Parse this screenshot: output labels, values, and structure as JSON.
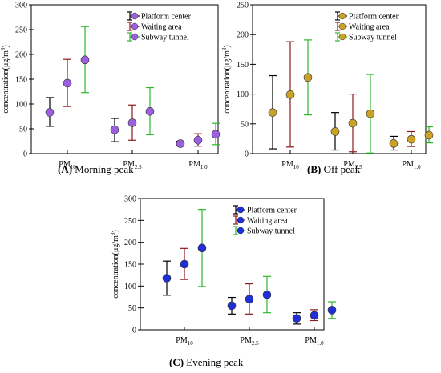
{
  "chart_data": [
    {
      "type": "scatter",
      "panel_letter": "(A)",
      "caption": "Morning peak",
      "ylabel": "concentration(μg/m³)",
      "ylim": [
        0,
        300
      ],
      "yticks": [
        0,
        50,
        100,
        150,
        200,
        250,
        300
      ],
      "categories": [
        "PM10",
        "PM2.5",
        "PM1.0"
      ],
      "marker_color": "#9b5fe0",
      "series": [
        {
          "name": "Platform center",
          "bar_color": "#000000",
          "mean": [
            83,
            48,
            20
          ],
          "low": [
            55,
            24,
            16
          ],
          "high": [
            113,
            71,
            25
          ]
        },
        {
          "name": "Waiting area",
          "bar_color": "#8b1a1a",
          "mean": [
            142,
            62,
            27
          ],
          "low": [
            95,
            27,
            15
          ],
          "high": [
            190,
            98,
            40
          ]
        },
        {
          "name": "Subway tunnel",
          "bar_color": "#2db82d",
          "mean": [
            189,
            85,
            39
          ],
          "low": [
            123,
            38,
            18
          ],
          "high": [
            256,
            133,
            61
          ]
        }
      ]
    },
    {
      "type": "scatter",
      "panel_letter": "(B)",
      "caption": "Off peak",
      "ylabel": "concentration(μg/m³)",
      "ylim": [
        0,
        250
      ],
      "yticks": [
        0,
        50,
        100,
        150,
        200,
        250
      ],
      "categories": [
        "PM10",
        "PM2.5",
        "PM1.0"
      ],
      "marker_color": "#c9a227",
      "series": [
        {
          "name": "Platform center",
          "bar_color": "#000000",
          "mean": [
            69,
            37,
            17
          ],
          "low": [
            8,
            6,
            6
          ],
          "high": [
            131,
            69,
            29
          ]
        },
        {
          "name": "Waiting area",
          "bar_color": "#8b1a1a",
          "mean": [
            99,
            51,
            24
          ],
          "low": [
            11,
            3,
            12
          ],
          "high": [
            188,
            100,
            37
          ]
        },
        {
          "name": "Subway tunnel",
          "bar_color": "#2db82d",
          "mean": [
            128,
            67,
            31
          ],
          "low": [
            65,
            1,
            18
          ],
          "high": [
            191,
            133,
            45
          ]
        }
      ]
    },
    {
      "type": "scatter",
      "panel_letter": "(C)",
      "caption": "Evening peak",
      "ylabel": "concentration(μg/m³)",
      "ylim": [
        0,
        300
      ],
      "yticks": [
        0,
        50,
        100,
        150,
        200,
        250,
        300
      ],
      "categories": [
        "PM10",
        "PM2.5",
        "PM1.0"
      ],
      "marker_color": "#1f2fd6",
      "series": [
        {
          "name": "Platform center",
          "bar_color": "#000000",
          "mean": [
            118,
            55,
            26
          ],
          "low": [
            79,
            36,
            13
          ],
          "high": [
            157,
            74,
            39
          ]
        },
        {
          "name": "Waiting area",
          "bar_color": "#8b1a1a",
          "mean": [
            150,
            70,
            33
          ],
          "low": [
            115,
            36,
            21
          ],
          "high": [
            186,
            105,
            46
          ]
        },
        {
          "name": "Subway tunnel",
          "bar_color": "#2db82d",
          "mean": [
            187,
            80,
            45
          ],
          "low": [
            99,
            39,
            26
          ],
          "high": [
            275,
            122,
            64
          ]
        }
      ]
    }
  ]
}
